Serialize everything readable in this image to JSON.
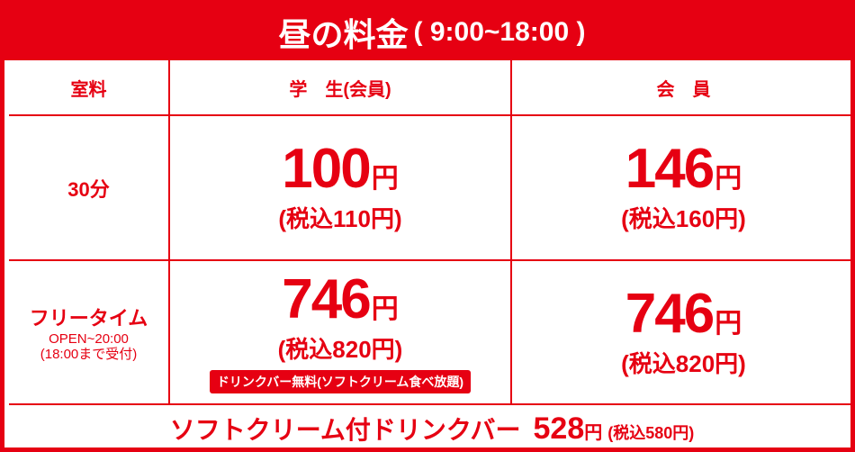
{
  "header": {
    "title": "昼の料金",
    "hours": "( 9:00~18:00 )"
  },
  "table": {
    "columns": [
      "室料",
      "学　生(会員)",
      "会　員"
    ],
    "rows": [
      {
        "label": "30分",
        "cells": [
          {
            "price": "100",
            "unit": "円",
            "tax": "(税込110円)"
          },
          {
            "price": "146",
            "unit": "円",
            "tax": "(税込160円)"
          }
        ]
      },
      {
        "label": "フリータイム",
        "notes": [
          "OPEN~20:00",
          "(18:00まで受付)"
        ],
        "cells": [
          {
            "price": "746",
            "unit": "円",
            "tax": "(税込820円)",
            "badge": "ドリンクバー無料(ソフトクリーム食べ放題)"
          },
          {
            "price": "746",
            "unit": "円",
            "tax": "(税込820円)"
          }
        ]
      }
    ]
  },
  "footer": {
    "label": "ソフトクリーム付ドリンクバー",
    "price": "528",
    "unit": "円",
    "tax": "(税込580円)"
  }
}
